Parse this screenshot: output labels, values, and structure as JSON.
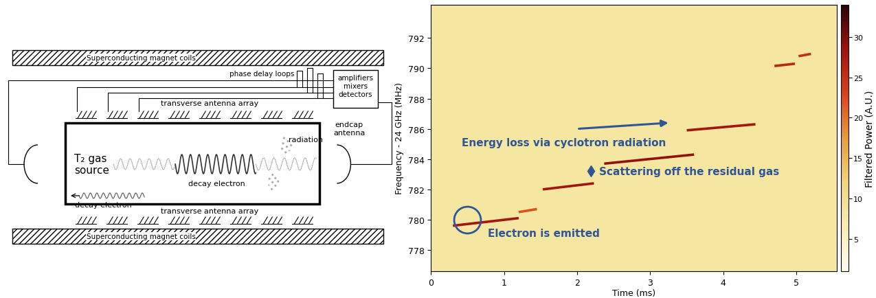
{
  "diagram": {
    "magnet_coils": [
      "Superconducting magnet coils",
      "Superconducting magnet coils"
    ],
    "phase_delay_loops": "phase delay loops",
    "electronics": [
      "amplifiers",
      "mixers",
      "detectors"
    ],
    "antenna_arrays": [
      "transverse antenna array",
      "transverse antenna array"
    ],
    "endcap_antenna": "endcap antenna",
    "source": "T₂ gas source",
    "decay_electrons": [
      "decay electron",
      "decay electron"
    ],
    "radiation": "radiation"
  },
  "chart_data": {
    "type": "spectrogram",
    "x_label": "Time (ms)",
    "y_label": "Frequency - 24 GHz (MHz)",
    "xlim": [
      0,
      5.55
    ],
    "xticks": [
      0,
      1,
      2,
      3,
      4,
      5
    ],
    "ylim": [
      776.6,
      794.2
    ],
    "yticks": [
      778,
      780,
      782,
      784,
      786,
      788,
      790,
      792
    ],
    "background_power": 8,
    "tracks": [
      {
        "x": [
          0.3,
          1.2
        ],
        "values": [
          779.6,
          780.1
        ],
        "power": 28
      },
      {
        "x": [
          1.2,
          1.45
        ],
        "values": [
          780.5,
          780.7
        ],
        "power": 22
      },
      {
        "x": [
          1.53,
          2.23
        ],
        "values": [
          782.0,
          782.4
        ],
        "power": 28
      },
      {
        "x": [
          2.37,
          3.6
        ],
        "values": [
          783.7,
          784.3
        ],
        "power": 29
      },
      {
        "x": [
          3.5,
          4.44
        ],
        "values": [
          785.9,
          786.3
        ],
        "power": 28
      },
      {
        "x": [
          4.7,
          4.98
        ],
        "values": [
          790.15,
          790.3
        ],
        "power": 26
      },
      {
        "x": [
          5.03,
          5.2
        ],
        "values": [
          790.8,
          790.95
        ],
        "power": 25
      }
    ],
    "colorbar": {
      "label": "Filtered Power (A.U.)",
      "range": [
        1,
        34
      ],
      "ticks": [
        5,
        10,
        15,
        20,
        25,
        30
      ]
    },
    "annotations": {
      "energy_loss": "Energy loss via cyclotron radiation",
      "scattering": "Scattering off the residual gas",
      "emission": "Electron is emitted"
    }
  }
}
